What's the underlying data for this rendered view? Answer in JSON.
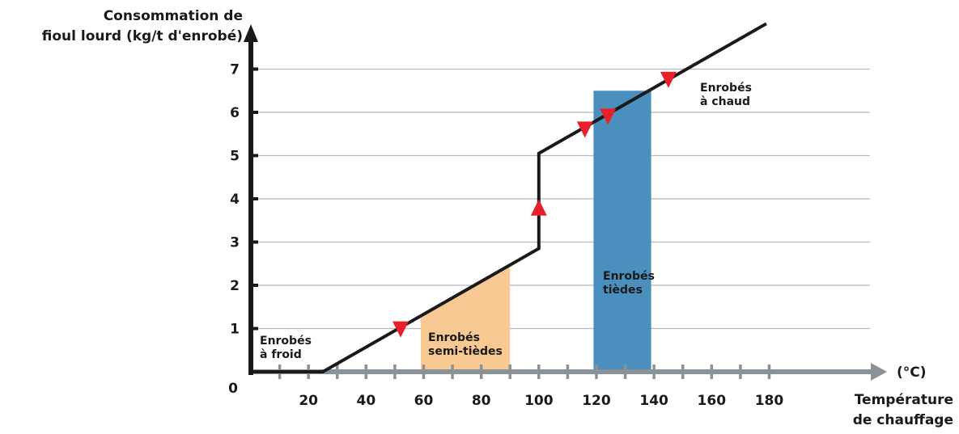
{
  "chart_data": {
    "type": "line",
    "ylabel_lines": [
      "Consommation de",
      "fioul lourd (kg/t d'enrobé)"
    ],
    "xlabel_lines": [
      "Température",
      "de chauffage"
    ],
    "x_unit": "(°C)",
    "xlim": [
      0,
      215
    ],
    "ylim": [
      0,
      8
    ],
    "x_ticks": [
      20,
      40,
      60,
      80,
      100,
      120,
      140,
      160,
      180
    ],
    "x_minor_ticks": [
      10,
      30,
      50,
      70,
      90,
      110,
      130,
      150,
      170
    ],
    "y_ticks": [
      1,
      2,
      3,
      4,
      5,
      6,
      7
    ],
    "origin_label": "0",
    "grid": "horizontal",
    "series": [
      {
        "x": [
          0,
          25,
          100,
          100,
          179
        ],
        "y": [
          0,
          0,
          2.85,
          5.05,
          8.05
        ]
      }
    ],
    "regions": [
      {
        "label_lines": [
          "Enrobés",
          "à froid"
        ],
        "x_range": [
          0,
          25
        ],
        "color": "#ffffff",
        "fill": false
      },
      {
        "label_lines": [
          "Enrobés",
          "semi-tièdes"
        ],
        "x_range": [
          59,
          90
        ],
        "color": "#f9c993",
        "fill": "under_curve"
      },
      {
        "label_lines": [
          "Enrobés",
          "tièdes"
        ],
        "x_range": [
          119,
          139
        ],
        "color": "#4a8fbd",
        "fill": "rect",
        "y_top": 6.5
      },
      {
        "label_lines": [
          "Enrobés",
          "à chaud"
        ],
        "x_range": [
          140,
          180
        ],
        "color": "#ffffff",
        "fill": false
      }
    ],
    "markers": [
      {
        "x": 52,
        "y": 0.98,
        "direction": "down"
      },
      {
        "x": 100,
        "y": 3.8,
        "direction": "up"
      },
      {
        "x": 116,
        "y": 5.6,
        "direction": "down"
      },
      {
        "x": 124,
        "y": 5.9,
        "direction": "down"
      },
      {
        "x": 145,
        "y": 6.75,
        "direction": "down"
      }
    ],
    "colors": {
      "axis": "#1a1a1a",
      "x_arrow": "#8a9297",
      "grid": "#b8b8b8",
      "curve": "#1a1a1a",
      "marker": "#e8202a",
      "semi_warm": "#f9c993",
      "warm": "#4a8fbd"
    }
  }
}
